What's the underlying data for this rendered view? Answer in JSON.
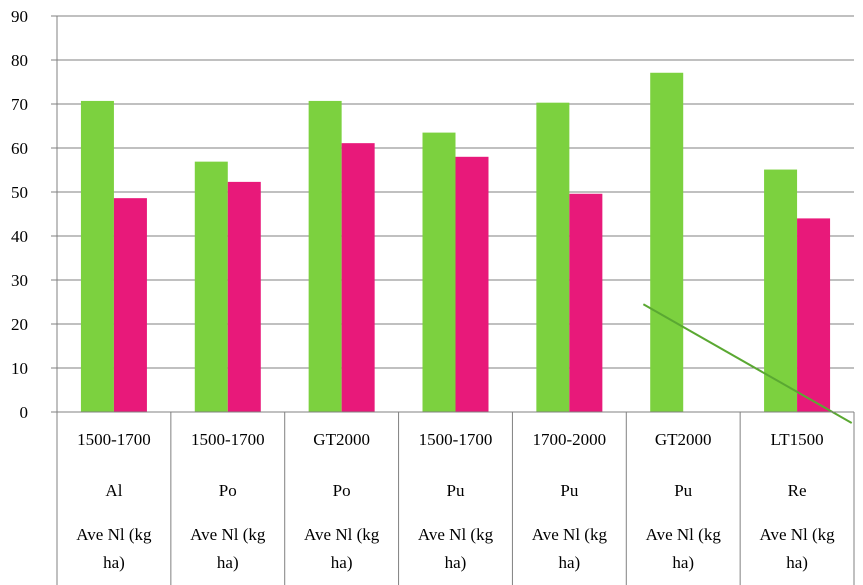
{
  "chart_data": {
    "type": "bar",
    "title": "",
    "xlabel": "",
    "ylabel": "",
    "ylim": [
      0,
      90
    ],
    "yticks": [
      0,
      10,
      20,
      30,
      40,
      50,
      60,
      70,
      80,
      90
    ],
    "grid": true,
    "legend": "none",
    "categories": [
      [
        "1500-1700",
        "Al",
        "Ave Nl (kg",
        "ha)"
      ],
      [
        "1500-1700",
        "Po",
        "Ave Nl (kg",
        "ha)"
      ],
      [
        "GT2000",
        "Po",
        "Ave Nl (kg",
        "ha)"
      ],
      [
        "1500-1700",
        "Pu",
        "Ave Nl (kg",
        "ha)"
      ],
      [
        "1700-2000",
        "Pu",
        "Ave Nl (kg",
        "ha)"
      ],
      [
        "GT2000",
        "Pu",
        "Ave Nl (kg",
        "ha)"
      ],
      [
        "LT1500",
        "Re",
        "Ave Nl (kg",
        "ha)"
      ]
    ],
    "series": [
      {
        "color": "#7cd13f",
        "values": [
          70.7,
          56.9,
          70.7,
          63.5,
          70.3,
          77.1,
          55.1
        ]
      },
      {
        "color": "#e8197a",
        "values": [
          48.6,
          52.3,
          61.1,
          58.0,
          49.6,
          null,
          44.0
        ]
      }
    ],
    "trendline": {
      "color": "#5aa832",
      "from": [
        5.15,
        24.5
      ],
      "to": [
        6.98,
        -2.5
      ]
    },
    "colors": {
      "axis": "#808080",
      "grid": "#808080"
    }
  }
}
